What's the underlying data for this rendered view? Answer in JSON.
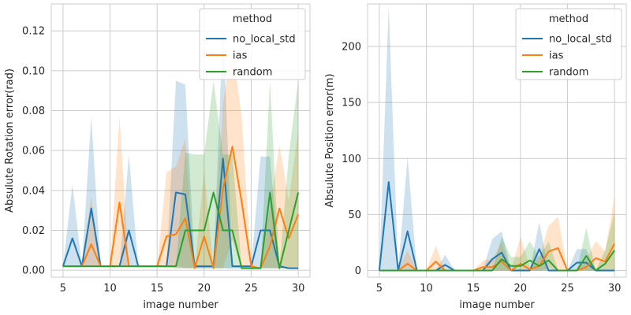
{
  "chart_data": [
    {
      "type": "line",
      "xlabel": "image number",
      "ylabel": "Absulute Rotation error(rad)",
      "xlim": [
        3.75,
        31.25
      ],
      "ylim": [
        -0.0035,
        0.1335
      ],
      "xticks": [
        "5",
        "10",
        "15",
        "20",
        "25",
        "30"
      ],
      "xtick_values": [
        5,
        10,
        15,
        20,
        25,
        30
      ],
      "yticks": [
        "0.00",
        "0.02",
        "0.04",
        "0.06",
        "0.08",
        "0.10",
        "0.12"
      ],
      "ytick_values": [
        0,
        0.02,
        0.04,
        0.06,
        0.08,
        0.1,
        0.12
      ],
      "grid": true,
      "legend": {
        "title": "method",
        "placement": "top-right"
      },
      "x": [
        5,
        6,
        7,
        8,
        9,
        10,
        11,
        12,
        13,
        14,
        15,
        16,
        17,
        18,
        19,
        20,
        21,
        22,
        23,
        24,
        25,
        26,
        27,
        28,
        29,
        30
      ],
      "series": [
        {
          "name": "no_local_std",
          "color": "#1f77b4",
          "values": [
            0.002,
            0.016,
            0.002,
            0.031,
            0.002,
            0.002,
            0.002,
            0.02,
            0.002,
            0.002,
            0.002,
            0.002,
            0.039,
            0.038,
            0.002,
            0.002,
            0.002,
            0.056,
            0.002,
            0.002,
            0.002,
            0.02,
            0.02,
            0.002,
            0.001,
            0.001
          ],
          "lower": [
            0.002,
            0.002,
            0.002,
            0.002,
            0.002,
            0.002,
            0.002,
            0.002,
            0.002,
            0.002,
            0.002,
            0.002,
            0.001,
            0.001,
            0.001,
            0.001,
            0.001,
            0.001,
            0.001,
            0.001,
            0.001,
            0.001,
            0.001,
            0.001,
            0.001,
            0.001
          ],
          "upper": [
            0.002,
            0.043,
            0.002,
            0.077,
            0.002,
            0.002,
            0.002,
            0.058,
            0.002,
            0.002,
            0.002,
            0.002,
            0.095,
            0.093,
            0.002,
            0.002,
            0.002,
            0.124,
            0.002,
            0.002,
            0.002,
            0.057,
            0.057,
            0.002,
            0.001,
            0.001
          ]
        },
        {
          "name": "ias",
          "color": "#ff7f0e",
          "values": [
            0.002,
            0.002,
            0.002,
            0.013,
            0.002,
            0.002,
            0.034,
            0.002,
            0.002,
            0.002,
            0.002,
            0.017,
            0.018,
            0.026,
            0.001,
            0.017,
            0.001,
            0.041,
            0.062,
            0.034,
            0.002,
            0.001,
            0.012,
            0.031,
            0.016,
            0.028
          ],
          "lower": [
            0.002,
            0.002,
            0.002,
            0.002,
            0.002,
            0.002,
            0.002,
            0.002,
            0.002,
            0.002,
            0.002,
            0.001,
            0.001,
            0.001,
            0.001,
            0.001,
            0.001,
            0.001,
            0.015,
            0.001,
            0.001,
            0.001,
            0.001,
            0.001,
            0.001,
            0.001
          ],
          "upper": [
            0.002,
            0.002,
            0.002,
            0.037,
            0.002,
            0.002,
            0.077,
            0.002,
            0.002,
            0.002,
            0.002,
            0.049,
            0.052,
            0.066,
            0.001,
            0.05,
            0.001,
            0.084,
            0.113,
            0.076,
            0.002,
            0.001,
            0.032,
            0.063,
            0.035,
            0.07
          ]
        },
        {
          "name": "random",
          "color": "#2ca02c",
          "values": [
            0.002,
            0.002,
            0.002,
            0.002,
            0.002,
            0.002,
            0.002,
            0.002,
            0.002,
            0.002,
            0.002,
            0.002,
            0.002,
            0.02,
            0.02,
            0.02,
            0.039,
            0.02,
            0.02,
            0.001,
            0.001,
            0.001,
            0.039,
            0.001,
            0.02,
            0.039
          ],
          "lower": [
            0.002,
            0.002,
            0.002,
            0.002,
            0.002,
            0.002,
            0.002,
            0.002,
            0.002,
            0.002,
            0.002,
            0.002,
            0.002,
            0.001,
            0.001,
            0.001,
            0.001,
            0.001,
            0.001,
            0.001,
            0.001,
            0.001,
            0.001,
            0.001,
            0.001,
            0.001
          ],
          "upper": [
            0.002,
            0.002,
            0.002,
            0.002,
            0.002,
            0.002,
            0.002,
            0.002,
            0.002,
            0.002,
            0.002,
            0.002,
            0.002,
            0.059,
            0.058,
            0.058,
            0.095,
            0.058,
            0.058,
            0.001,
            0.001,
            0.001,
            0.095,
            0.001,
            0.058,
            0.095
          ]
        }
      ]
    },
    {
      "type": "line",
      "xlabel": "image number",
      "ylabel": "Absulute Position error(m)",
      "xlim": [
        3.75,
        31.25
      ],
      "ylim": [
        -6,
        238
      ],
      "xticks": [
        "5",
        "10",
        "15",
        "20",
        "25",
        "30"
      ],
      "xtick_values": [
        5,
        10,
        15,
        20,
        25,
        30
      ],
      "yticks": [
        "0",
        "50",
        "100",
        "150",
        "200"
      ],
      "ytick_values": [
        0,
        50,
        100,
        150,
        200
      ],
      "grid": true,
      "legend": {
        "title": "method",
        "placement": "top-right"
      },
      "x": [
        5,
        6,
        7,
        8,
        9,
        10,
        11,
        12,
        13,
        14,
        15,
        16,
        17,
        18,
        19,
        20,
        21,
        22,
        23,
        24,
        25,
        26,
        27,
        28,
        29,
        30
      ],
      "series": [
        {
          "name": "no_local_std",
          "color": "#1f77b4",
          "values": [
            0,
            79,
            0,
            35,
            0,
            0,
            0,
            5,
            0,
            0,
            0,
            0,
            10,
            16,
            0,
            0,
            0,
            19,
            0,
            0,
            0,
            7,
            7,
            0,
            0,
            0
          ],
          "lower": [
            0,
            0,
            0,
            0,
            0,
            0,
            0,
            0,
            0,
            0,
            0,
            0,
            0,
            0,
            0,
            0,
            0,
            0,
            0,
            0,
            0,
            0,
            0,
            0,
            0,
            0
          ],
          "upper": [
            0,
            236,
            0,
            101,
            0,
            0,
            0,
            14,
            0,
            0,
            0,
            0,
            28,
            35,
            0,
            0,
            0,
            43,
            0,
            0,
            0,
            19,
            19,
            0,
            0,
            0
          ]
        },
        {
          "name": "ias",
          "color": "#ff7f0e",
          "values": [
            0,
            0,
            0,
            6,
            0,
            0,
            8,
            0,
            0,
            0,
            0,
            3,
            3,
            8,
            0,
            6,
            1,
            4,
            17,
            20,
            0,
            0,
            3,
            11,
            8,
            24
          ],
          "lower": [
            0,
            0,
            0,
            0,
            0,
            0,
            0,
            0,
            0,
            0,
            0,
            0,
            0,
            0,
            0,
            0,
            0,
            0,
            2,
            0,
            0,
            0,
            0,
            0,
            0,
            0
          ],
          "upper": [
            0,
            0,
            0,
            18,
            0,
            0,
            22,
            0,
            0,
            0,
            0,
            9,
            10,
            25,
            0,
            30,
            3,
            12,
            40,
            48,
            0,
            0,
            10,
            26,
            17,
            66
          ]
        },
        {
          "name": "random",
          "color": "#2ca02c",
          "values": [
            0,
            0,
            0,
            0,
            0,
            0,
            0,
            0,
            0,
            0,
            0,
            0,
            0,
            10,
            4,
            4,
            9,
            4,
            9,
            0,
            0,
            0,
            13,
            0,
            6,
            18
          ],
          "lower": [
            0,
            0,
            0,
            0,
            0,
            0,
            0,
            0,
            0,
            0,
            0,
            0,
            0,
            0,
            0,
            0,
            0,
            0,
            0,
            0,
            0,
            0,
            0,
            0,
            0,
            0
          ],
          "upper": [
            0,
            0,
            0,
            0,
            0,
            0,
            0,
            0,
            0,
            0,
            0,
            0,
            0,
            30,
            12,
            12,
            26,
            12,
            26,
            0,
            0,
            0,
            38,
            0,
            18,
            52
          ]
        }
      ]
    }
  ]
}
